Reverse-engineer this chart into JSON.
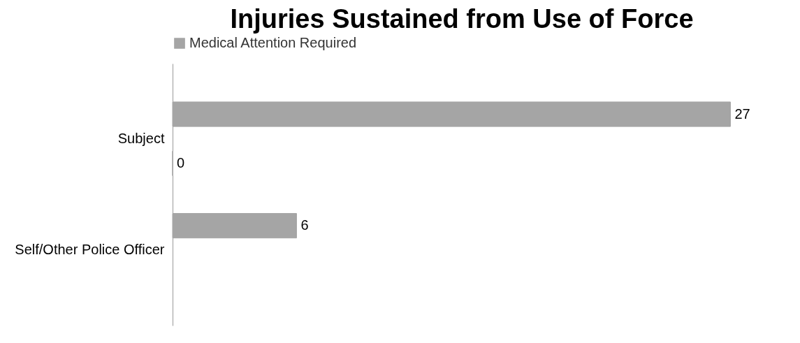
{
  "chart_data": {
    "type": "bar",
    "orientation": "horizontal",
    "title": "Injuries Sustained from Use of Force",
    "categories": [
      "Subject",
      "Self/Other Police Officer"
    ],
    "series": [
      {
        "name": "Medical Attention Required",
        "color": "#a5a5a5",
        "values": [
          27,
          6
        ]
      },
      {
        "color": "#a5a5a5",
        "values": [
          0,
          null
        ]
      }
    ],
    "data_labels": true,
    "legend": "top"
  }
}
